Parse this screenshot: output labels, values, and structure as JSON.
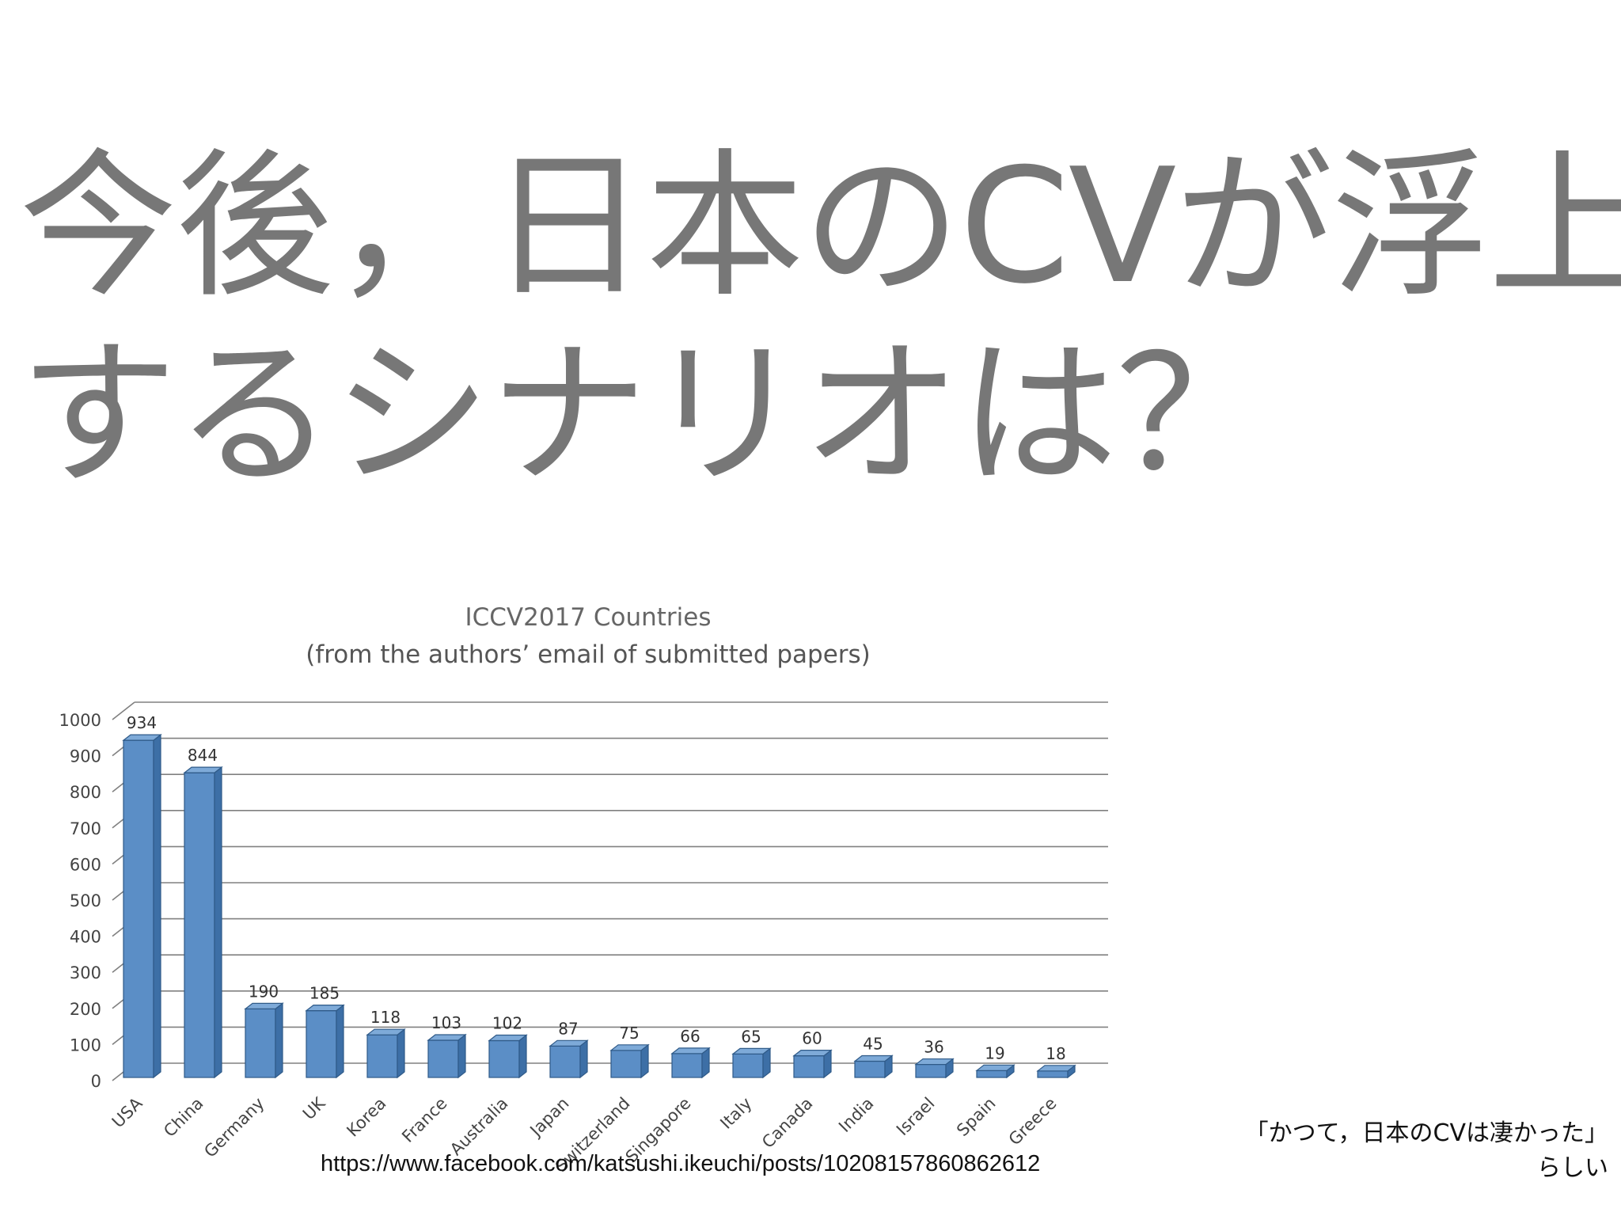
{
  "slide": {
    "title_line1": "今後，日本のCVが浮上",
    "title_line2": "するシナリオは？",
    "source_url": "https://www.facebook.com/katsushi.ikeuchi/posts/10208157860862612",
    "note_line1": "「かつて，日本のCVは凄かった」",
    "note_line2": "らしい"
  },
  "colors": {
    "title": "#777777",
    "bar_front": "#5b8ec6",
    "bar_side": "#3d6fa6",
    "bar_top": "#7eaad8",
    "grid": "#808080",
    "chart_text": "#555555"
  },
  "chart_data": {
    "type": "bar",
    "title": "ICCV2017 Countries",
    "subtitle": "(from the authors’ email of submitted  papers)",
    "categories": [
      "USA",
      "China",
      "Germany",
      "UK",
      "Korea",
      "France",
      "Australia",
      "Japan",
      "Switzerland",
      "Singapore",
      "Italy",
      "Canada",
      "India",
      "Israel",
      "Spain",
      "Greece"
    ],
    "values": [
      934,
      844,
      190,
      185,
      118,
      103,
      102,
      87,
      75,
      66,
      65,
      60,
      45,
      36,
      19,
      18
    ],
    "ylim": [
      0,
      1000
    ],
    "yticks": [
      0,
      100,
      200,
      300,
      400,
      500,
      600,
      700,
      800,
      900,
      1000
    ],
    "xlabel": "",
    "ylabel": "",
    "grid": true,
    "legend": "none",
    "style": "3d"
  }
}
